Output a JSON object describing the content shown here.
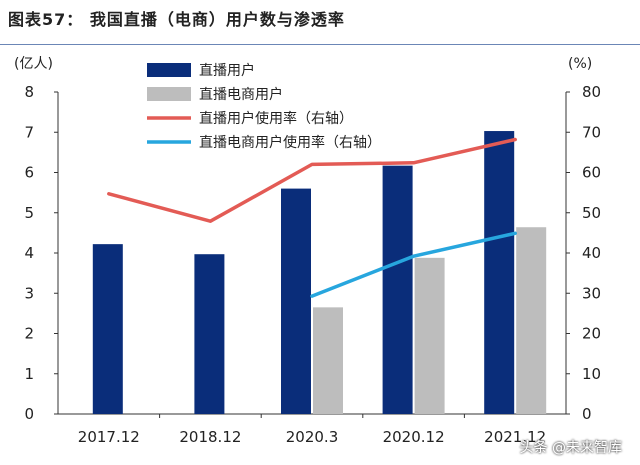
{
  "page": {
    "title": "图表57：  我国直播（电商）用户数与渗透率",
    "watermark": "头条 @未来智库"
  },
  "chart_data": {
    "type": "bar",
    "categories": [
      "2017.12",
      "2018.12",
      "2020.3",
      "2020.12",
      "2021.12"
    ],
    "y_left": {
      "unit_label": "(亿人)",
      "range": [
        0,
        8
      ],
      "ticks": [
        0,
        1,
        2,
        3,
        4,
        5,
        6,
        7,
        8
      ]
    },
    "y_right": {
      "unit_label": "(%)",
      "range": [
        0,
        80
      ],
      "ticks": [
        0,
        10,
        20,
        30,
        40,
        50,
        60,
        70,
        80
      ]
    },
    "series": [
      {
        "name": "直播用户",
        "kind": "bar",
        "axis": "left",
        "color": "#0a2d7a",
        "values": [
          4.22,
          3.97,
          5.6,
          6.17,
          7.03
        ]
      },
      {
        "name": "直播电商用户",
        "kind": "bar",
        "axis": "left",
        "color": "#bdbdbd",
        "values": [
          null,
          null,
          2.65,
          3.88,
          4.64
        ]
      },
      {
        "name": "直播用户使用率（右轴）",
        "kind": "line",
        "axis": "right",
        "color": "#e35b55",
        "values": [
          54.7,
          47.9,
          62.0,
          62.4,
          68.2
        ]
      },
      {
        "name": "直播电商用户使用率（右轴）",
        "kind": "line",
        "axis": "right",
        "color": "#27a6de",
        "values": [
          null,
          null,
          29.3,
          39.2,
          44.9
        ]
      }
    ],
    "grid": false,
    "legend": "top-center"
  }
}
